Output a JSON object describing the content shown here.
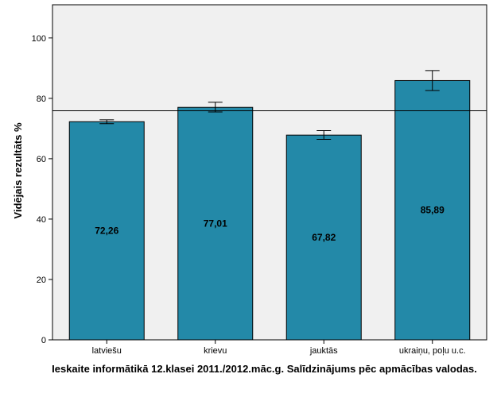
{
  "chart_data": {
    "type": "bar",
    "categories": [
      "latviešu",
      "krievu",
      "jauktās",
      "ukraiņu, poļu u.c."
    ],
    "values": [
      72.26,
      77.01,
      67.82,
      85.89
    ],
    "value_labels": [
      "72,26",
      "77,01",
      "67,82",
      "85,89"
    ],
    "error_low": [
      71.6,
      75.5,
      66.4,
      82.6
    ],
    "error_high": [
      72.9,
      78.7,
      69.3,
      89.2
    ],
    "reference_line": 75.9,
    "ylabel": "Vidējais rezultāts %",
    "xlabel": "Ieskaite informātikā 12.klasei 2011./2012.māc.g. Salīdzinājums pēc apmācības valodas.",
    "ylim": [
      0,
      111
    ],
    "yticks": [
      0,
      20,
      40,
      60,
      80,
      100
    ],
    "grid": false,
    "colors": {
      "bar": "#2389a8",
      "plot_bg": "#f0f0f0",
      "bar_stroke": "#000000"
    }
  }
}
